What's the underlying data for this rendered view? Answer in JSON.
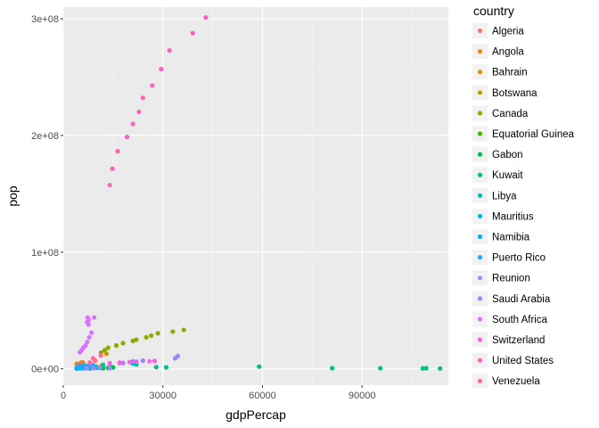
{
  "chart_data": {
    "type": "scatter",
    "xlabel": "gdpPercap",
    "ylabel": "pop",
    "xlim": [
      0,
      116000
    ],
    "ylim": [
      -14000000,
      310000000
    ],
    "x_ticks": [
      0,
      30000,
      60000,
      90000
    ],
    "x_tick_labels": [
      "0",
      "30000",
      "60000",
      "90000"
    ],
    "y_ticks": [
      0,
      100000000,
      200000000,
      300000000
    ],
    "y_tick_labels": [
      "0e+00",
      "1e+08",
      "2e+08",
      "3e+08"
    ],
    "grid": true,
    "legend": {
      "title": "country",
      "placement": "right"
    },
    "series": [
      {
        "name": "Algeria",
        "color": "#F8766D",
        "points": [
          [
            4500,
            3500000
          ],
          [
            5000,
            4000000
          ],
          [
            5500,
            4500000
          ],
          [
            6000,
            5000000
          ],
          [
            5600,
            5600000
          ]
        ]
      },
      {
        "name": "Angola",
        "color": "#E7851E",
        "points": [
          [
            4200,
            4000000
          ],
          [
            4800,
            4500000
          ],
          [
            5300,
            5100000
          ],
          [
            5800,
            5600000
          ],
          [
            4000,
            4300000
          ]
        ]
      },
      {
        "name": "Bahrain",
        "color": "#D09400",
        "points": [
          [
            10000,
            2000000
          ],
          [
            11500,
            2700000
          ],
          [
            13000,
            13000000
          ],
          [
            14500,
            1800000
          ]
        ]
      },
      {
        "name": "Botswana",
        "color": "#B2A100",
        "points": [
          [
            4000,
            500000
          ],
          [
            5000,
            600000
          ],
          [
            6000,
            700000
          ],
          [
            8000,
            800000
          ],
          [
            10000,
            900000
          ],
          [
            12000,
            1000000
          ]
        ]
      },
      {
        "name": "Canada",
        "color": "#89AC00",
        "points": [
          [
            11400,
            14000000
          ],
          [
            12500,
            16000000
          ],
          [
            13500,
            18000000
          ],
          [
            16000,
            20000000
          ],
          [
            18000,
            22000000
          ],
          [
            21000,
            24000000
          ],
          [
            22000,
            25000000
          ],
          [
            25000,
            27000000
          ],
          [
            26500,
            28500000
          ],
          [
            28500,
            30500000
          ],
          [
            33000,
            31900000
          ],
          [
            36300,
            33400000
          ]
        ]
      },
      {
        "name": "Equatorial Guinea",
        "color": "#45B500",
        "points": [
          [
            4000,
            300000
          ],
          [
            5000,
            350000
          ],
          [
            6000,
            400000
          ],
          [
            8000,
            450000
          ],
          [
            12000,
            550000
          ]
        ]
      },
      {
        "name": "Gabon",
        "color": "#00BC51",
        "points": [
          [
            8000,
            500000
          ],
          [
            12000,
            700000
          ],
          [
            13500,
            800000
          ],
          [
            14000,
            1000000
          ],
          [
            15000,
            1200000
          ]
        ]
      },
      {
        "name": "Kuwait",
        "color": "#00C087",
        "points": [
          [
            28000,
            1500000
          ],
          [
            31000,
            1300000
          ],
          [
            59000,
            1900000
          ],
          [
            81000,
            600000
          ],
          [
            95500,
            500000
          ],
          [
            108300,
            400000
          ],
          [
            109300,
            600000
          ],
          [
            113500,
            300000
          ]
        ]
      },
      {
        "name": "Libya",
        "color": "#00C0B2",
        "points": [
          [
            4500,
            1500000
          ],
          [
            5500,
            2000000
          ],
          [
            6500,
            2500000
          ],
          [
            9000,
            3000000
          ],
          [
            12000,
            3500000
          ],
          [
            17000,
            5000000
          ],
          [
            21000,
            4500000
          ],
          [
            22000,
            3800000
          ]
        ]
      },
      {
        "name": "Mauritius",
        "color": "#00BCD6",
        "points": [
          [
            4000,
            600000
          ],
          [
            5000,
            700000
          ],
          [
            6000,
            800000
          ],
          [
            7000,
            900000
          ],
          [
            8000,
            1000000
          ],
          [
            10000,
            1100000
          ]
        ]
      },
      {
        "name": "Namibia",
        "color": "#00B3F2",
        "points": [
          [
            4300,
            500000
          ],
          [
            4800,
            600000
          ],
          [
            5200,
            800000
          ],
          [
            5700,
            1000000
          ],
          [
            6200,
            1300000
          ]
        ]
      },
      {
        "name": "Puerto Rico",
        "color": "#29A3FF",
        "points": [
          [
            4500,
            2300000
          ],
          [
            5000,
            2500000
          ],
          [
            6500,
            2600000
          ],
          [
            7500,
            2800000
          ],
          [
            9000,
            3100000
          ]
        ]
      },
      {
        "name": "Reunion",
        "color": "#9C8DFF",
        "points": [
          [
            7000,
            400000
          ],
          [
            9000,
            500000
          ],
          [
            11000,
            600000
          ],
          [
            14000,
            700000
          ]
        ]
      },
      {
        "name": "Saudi Arabia",
        "color": "#9E83FF",
        "points": [
          [
            18000,
            5000000
          ],
          [
            21000,
            6500000
          ],
          [
            24000,
            7000000
          ],
          [
            33700,
            9000000
          ],
          [
            34500,
            11000000
          ]
        ]
      },
      {
        "name": "South Africa",
        "color": "#D874FD",
        "points": [
          [
            5000,
            14200000
          ],
          [
            5500,
            16000000
          ],
          [
            6000,
            18000000
          ],
          [
            6700,
            20000000
          ],
          [
            7200,
            23000000
          ],
          [
            7800,
            27000000
          ],
          [
            8500,
            31000000
          ],
          [
            7600,
            38000000
          ],
          [
            7200,
            40000000
          ],
          [
            7700,
            42000000
          ],
          [
            7300,
            44000000
          ],
          [
            9300,
            44000000
          ]
        ]
      },
      {
        "name": "Switzerland",
        "color": "#F564E3",
        "points": [
          [
            14000,
            4800000
          ],
          [
            17000,
            5300000
          ],
          [
            20000,
            5800000
          ],
          [
            22000,
            6200000
          ],
          [
            26000,
            6500000
          ],
          [
            27500,
            6800000
          ]
        ]
      },
      {
        "name": "United States",
        "color": "#FF62BC",
        "points": [
          [
            14000,
            157500000
          ],
          [
            14800,
            171500000
          ],
          [
            16400,
            186500000
          ],
          [
            19200,
            198700000
          ],
          [
            21000,
            209900000
          ],
          [
            22800,
            220200000
          ],
          [
            24000,
            232200000
          ],
          [
            26800,
            242800000
          ],
          [
            29500,
            256900000
          ],
          [
            32000,
            272900000
          ],
          [
            39000,
            287700000
          ],
          [
            42900,
            301100000
          ]
        ]
      },
      {
        "name": "Venezuela",
        "color": "#FF6C91",
        "points": [
          [
            8000,
            5400000
          ],
          [
            9600,
            7000000
          ],
          [
            9000,
            9000000
          ],
          [
            11300,
            11500000
          ]
        ]
      }
    ]
  }
}
